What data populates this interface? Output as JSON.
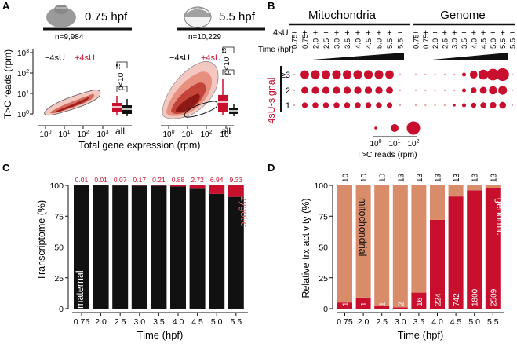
{
  "panels": {
    "A": {
      "letter": "A",
      "stage1": {
        "label": "0.75 hpf",
        "n": "n=9,984"
      },
      "stage2": {
        "label": "5.5 hpf",
        "n": "n=10,229"
      },
      "minus_label": "−4sU",
      "plus_label": "+4sU",
      "pvalue_base": "p<10",
      "pvalue_exp": "−15",
      "all_label": "all",
      "ylabel": "T>C reads (rpm)",
      "xlabel": "Total gene expression (rpm)",
      "yticks": [
        {
          "b": "10",
          "e": "0"
        },
        {
          "b": "10",
          "e": "1"
        },
        {
          "b": "10",
          "e": "2"
        },
        {
          "b": "10",
          "e": "3"
        }
      ],
      "xticks": [
        {
          "b": "10",
          "e": "0"
        },
        {
          "b": "10",
          "e": "1"
        },
        {
          "b": "10",
          "e": "2"
        },
        {
          "b": "10",
          "e": "3"
        }
      ]
    },
    "B": {
      "letter": "B",
      "group1": "Mitochondria",
      "group2": "Genome",
      "row_4su": "4sU",
      "row_time": "Time (hpf)",
      "signs": [
        "−",
        "+",
        "+",
        "+",
        "+",
        "+",
        "+",
        "+",
        "+",
        "+",
        "−"
      ],
      "times": [
        "0.75",
        "0.75",
        "2.0",
        "2.5",
        "3.0",
        "3.5",
        "4.0",
        "4.5",
        "5.0",
        "5.5",
        "5.5"
      ],
      "signal_label": "4sU-signal",
      "levels": [
        "≥3",
        "2",
        "1"
      ],
      "legend_title": "T>C reads (rpm)",
      "legend_ticks": [
        {
          "b": "10",
          "e": "0"
        },
        {
          "b": "10",
          "e": "1"
        },
        {
          "b": "10",
          "e": "2"
        }
      ],
      "dots": {
        "mito": [
          [
            0.12,
            0.6,
            0.62,
            0.62,
            0.62,
            0.62,
            0.62,
            0.62,
            0.62,
            0.6,
            0.1
          ],
          [
            0.12,
            0.5,
            0.52,
            0.52,
            0.52,
            0.52,
            0.52,
            0.52,
            0.52,
            0.5,
            0.1
          ],
          [
            0.12,
            0.4,
            0.42,
            0.42,
            0.42,
            0.42,
            0.42,
            0.42,
            0.42,
            0.4,
            0.1
          ]
        ],
        "genome": [
          [
            0.08,
            0.06,
            0.06,
            0.06,
            0.12,
            0.28,
            0.55,
            0.7,
            0.82,
            0.9,
            0.08
          ],
          [
            0.1,
            0.1,
            0.1,
            0.1,
            0.12,
            0.28,
            0.42,
            0.5,
            0.58,
            0.62,
            0.1
          ],
          [
            0.12,
            0.12,
            0.14,
            0.14,
            0.18,
            0.28,
            0.36,
            0.42,
            0.46,
            0.48,
            0.12
          ]
        ]
      }
    },
    "C": {
      "letter": "C",
      "ylabel": "Transcriptome (%)",
      "xlabel": "Time (hpf)",
      "maternal_label": "maternal",
      "zygotic_label": "zygotic"
    },
    "D": {
      "letter": "D",
      "ylabel": "Relative trx activity (%)",
      "xlabel": "Time (hpf)",
      "mito_label": "mitochondrial",
      "genomic_label": "genomic"
    }
  },
  "colors": {
    "dark_red": "#c8102e",
    "salmon": "#d98c6a",
    "black": "#111111",
    "pink": "#e8a7a7"
  },
  "chart_data": [
    {
      "type": "bar",
      "panel": "C",
      "categories": [
        "0.75",
        "2.0",
        "2.5",
        "3.0",
        "3.5",
        "4.0",
        "4.5",
        "5.0",
        "5.5"
      ],
      "series": [
        {
          "name": "maternal",
          "values": [
            99.99,
            99.99,
            99.93,
            99.83,
            99.79,
            99.12,
            97.28,
            93.06,
            90.67
          ]
        },
        {
          "name": "zygotic",
          "values": [
            0.01,
            0.01,
            0.07,
            0.17,
            0.21,
            0.88,
            2.72,
            6.94,
            9.33
          ]
        }
      ],
      "top_labels": [
        "0.01",
        "0.01",
        "0.07",
        "0.17",
        "0.21",
        "0.88",
        "2.72",
        "6.94",
        "9.33"
      ],
      "yticks": [
        "0",
        "25",
        "50",
        "75",
        "100"
      ],
      "ylim": [
        0,
        100
      ]
    },
    {
      "type": "bar",
      "panel": "D",
      "categories": [
        "0.75",
        "2.0",
        "2.5",
        "3.0",
        "3.5",
        "4.0",
        "4.5",
        "5.0",
        "5.5"
      ],
      "series": [
        {
          "name": "genomic",
          "values": [
            5,
            9,
            2,
            1,
            13,
            72,
            91,
            96,
            98
          ]
        },
        {
          "name": "mitochondrial",
          "values": [
            95,
            91,
            98,
            99,
            87,
            28,
            9,
            4,
            2
          ]
        }
      ],
      "top_labels": [
        "10",
        "10",
        "10",
        "13",
        "13",
        "13",
        "13",
        "13",
        "13"
      ],
      "inner_labels": [
        "1",
        "1",
        "1",
        "2",
        "16",
        "224",
        "742",
        "1800",
        "2509"
      ],
      "yticks": [
        "0",
        "25",
        "50",
        "75",
        "100"
      ],
      "ylim": [
        0,
        100
      ]
    }
  ]
}
